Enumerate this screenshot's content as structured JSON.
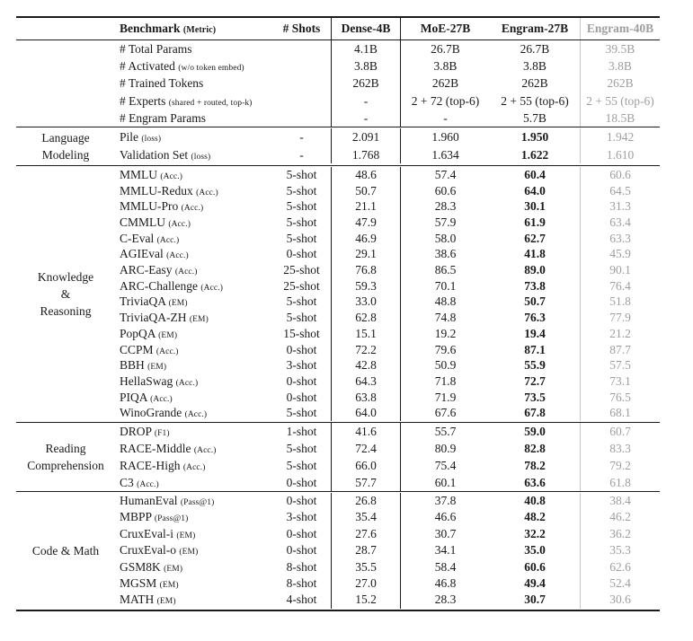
{
  "table": {
    "header": {
      "benchmark": "Benchmark",
      "benchmark_metric": "(Metric)",
      "shots": "# Shots",
      "columns": [
        "Dense-4B",
        "MoE-27B",
        "Engram-27B",
        "Engram-40B"
      ]
    },
    "colors": {
      "text": "#1a1a1a",
      "muted_column_text": "#9e9e9e",
      "rule": "#1a1a1a",
      "light_rule": "#c8c8c8"
    },
    "sections": [
      {
        "id": "params",
        "group_lines": [],
        "bold_engram27": false,
        "rows": [
          {
            "name": "# Total Params",
            "metric": "",
            "shots": "",
            "values": [
              "4.1B",
              "26.7B",
              "26.7B",
              "39.5B"
            ]
          },
          {
            "name": "# Activated",
            "metric": "(w/o token embed)",
            "shots": "",
            "values": [
              "3.8B",
              "3.8B",
              "3.8B",
              "3.8B"
            ]
          },
          {
            "name": "# Trained Tokens",
            "metric": "",
            "shots": "",
            "values": [
              "262B",
              "262B",
              "262B",
              "262B"
            ]
          },
          {
            "name": "# Experts",
            "metric": "(shared + routed, top-k)",
            "shots": "",
            "values": [
              "-",
              "2 + 72 (top-6)",
              "2 + 55 (top-6)",
              "2 + 55 (top-6)"
            ]
          },
          {
            "name": "# Engram Params",
            "metric": "",
            "shots": "",
            "values": [
              "-",
              "-",
              "5.7B",
              "18.5B"
            ]
          }
        ]
      },
      {
        "id": "language-modeling",
        "group_lines": [
          "Language",
          "Modeling"
        ],
        "bold_engram27": true,
        "rows": [
          {
            "name": "Pile",
            "metric": "(loss)",
            "shots": "-",
            "values": [
              "2.091",
              "1.960",
              "1.950",
              "1.942"
            ]
          },
          {
            "name": "Validation Set",
            "metric": "(loss)",
            "shots": "-",
            "values": [
              "1.768",
              "1.634",
              "1.622",
              "1.610"
            ]
          }
        ]
      },
      {
        "id": "knowledge-reasoning",
        "group_lines": [
          "Knowledge",
          "&",
          "Reasoning"
        ],
        "bold_engram27": true,
        "rows": [
          {
            "name": "MMLU",
            "metric": "(Acc.)",
            "shots": "5-shot",
            "values": [
              "48.6",
              "57.4",
              "60.4",
              "60.6"
            ]
          },
          {
            "name": "MMLU-Redux",
            "metric": "(Acc.)",
            "shots": "5-shot",
            "values": [
              "50.7",
              "60.6",
              "64.0",
              "64.5"
            ]
          },
          {
            "name": "MMLU-Pro",
            "metric": "(Acc.)",
            "shots": "5-shot",
            "values": [
              "21.1",
              "28.3",
              "30.1",
              "31.3"
            ]
          },
          {
            "name": "CMMLU",
            "metric": "(Acc.)",
            "shots": "5-shot",
            "values": [
              "47.9",
              "57.9",
              "61.9",
              "63.4"
            ]
          },
          {
            "name": "C-Eval",
            "metric": "(Acc.)",
            "shots": "5-shot",
            "values": [
              "46.9",
              "58.0",
              "62.7",
              "63.3"
            ]
          },
          {
            "name": "AGIEval",
            "metric": "(Acc.)",
            "shots": "0-shot",
            "values": [
              "29.1",
              "38.6",
              "41.8",
              "45.9"
            ]
          },
          {
            "name": "ARC-Easy",
            "metric": "(Acc.)",
            "shots": "25-shot",
            "values": [
              "76.8",
              "86.5",
              "89.0",
              "90.1"
            ]
          },
          {
            "name": "ARC-Challenge",
            "metric": "(Acc.)",
            "shots": "25-shot",
            "values": [
              "59.3",
              "70.1",
              "73.8",
              "76.4"
            ]
          },
          {
            "name": "TriviaQA",
            "metric": "(EM)",
            "shots": "5-shot",
            "values": [
              "33.0",
              "48.8",
              "50.7",
              "51.8"
            ]
          },
          {
            "name": "TriviaQA-ZH",
            "metric": "(EM)",
            "shots": "5-shot",
            "values": [
              "62.8",
              "74.8",
              "76.3",
              "77.9"
            ]
          },
          {
            "name": "PopQA",
            "metric": "(EM)",
            "shots": "15-shot",
            "values": [
              "15.1",
              "19.2",
              "19.4",
              "21.2"
            ]
          },
          {
            "name": "CCPM",
            "metric": "(Acc.)",
            "shots": "0-shot",
            "values": [
              "72.2",
              "79.6",
              "87.1",
              "87.7"
            ]
          },
          {
            "name": "BBH",
            "metric": "(EM)",
            "shots": "3-shot",
            "values": [
              "42.8",
              "50.9",
              "55.9",
              "57.5"
            ]
          },
          {
            "name": "HellaSwag",
            "metric": "(Acc.)",
            "shots": "0-shot",
            "values": [
              "64.3",
              "71.8",
              "72.7",
              "73.1"
            ]
          },
          {
            "name": "PIQA",
            "metric": "(Acc.)",
            "shots": "0-shot",
            "values": [
              "63.8",
              "71.9",
              "73.5",
              "76.5"
            ]
          },
          {
            "name": "WinoGrande",
            "metric": "(Acc.)",
            "shots": "5-shot",
            "values": [
              "64.0",
              "67.6",
              "67.8",
              "68.1"
            ]
          }
        ]
      },
      {
        "id": "reading-comprehension",
        "group_lines": [
          "Reading",
          "Comprehension"
        ],
        "bold_engram27": true,
        "rows": [
          {
            "name": "DROP",
            "metric": "(F1)",
            "shots": "1-shot",
            "values": [
              "41.6",
              "55.7",
              "59.0",
              "60.7"
            ]
          },
          {
            "name": "RACE-Middle",
            "metric": "(Acc.)",
            "shots": "5-shot",
            "values": [
              "72.4",
              "80.9",
              "82.8",
              "83.3"
            ]
          },
          {
            "name": "RACE-High",
            "metric": "(Acc.)",
            "shots": "5-shot",
            "values": [
              "66.0",
              "75.4",
              "78.2",
              "79.2"
            ]
          },
          {
            "name": "C3",
            "metric": "(Acc.)",
            "shots": "0-shot",
            "values": [
              "57.7",
              "60.1",
              "63.6",
              "61.8"
            ]
          }
        ]
      },
      {
        "id": "code-math",
        "group_lines": [
          "Code & Math"
        ],
        "bold_engram27": true,
        "rows": [
          {
            "name": "HumanEval",
            "metric": "(Pass@1)",
            "shots": "0-shot",
            "values": [
              "26.8",
              "37.8",
              "40.8",
              "38.4"
            ]
          },
          {
            "name": "MBPP",
            "metric": "(Pass@1)",
            "shots": "3-shot",
            "values": [
              "35.4",
              "46.6",
              "48.2",
              "46.2"
            ]
          },
          {
            "name": "CruxEval-i",
            "metric": "(EM)",
            "shots": "0-shot",
            "values": [
              "27.6",
              "30.7",
              "32.2",
              "36.2"
            ]
          },
          {
            "name": "CruxEval-o",
            "metric": "(EM)",
            "shots": "0-shot",
            "values": [
              "28.7",
              "34.1",
              "35.0",
              "35.3"
            ]
          },
          {
            "name": "GSM8K",
            "metric": "(EM)",
            "shots": "8-shot",
            "values": [
              "35.5",
              "58.4",
              "60.6",
              "62.6"
            ]
          },
          {
            "name": "MGSM",
            "metric": "(EM)",
            "shots": "8-shot",
            "values": [
              "27.0",
              "46.8",
              "49.4",
              "52.4"
            ]
          },
          {
            "name": "MATH",
            "metric": "(EM)",
            "shots": "4-shot",
            "values": [
              "15.2",
              "28.3",
              "30.7",
              "30.6"
            ]
          }
        ]
      }
    ]
  }
}
